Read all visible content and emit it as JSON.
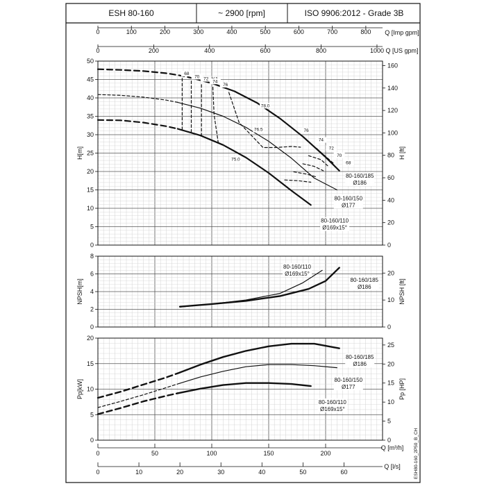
{
  "header": {
    "model": "ESH 80-160",
    "speed": "~ 2900 [rpm]",
    "standard": "ISO 9906:2012 - Grade 3B"
  },
  "chart_data": {
    "type": "line",
    "top_axes": [
      {
        "label": "Q [Imp gpm]",
        "range": [
          0,
          850
        ],
        "ticks": [
          0,
          100,
          200,
          300,
          400,
          500,
          600,
          700,
          800
        ]
      },
      {
        "label": "Q [US gpm]",
        "range": [
          0,
          1020
        ],
        "ticks": [
          0,
          200,
          400,
          600,
          800,
          1000
        ]
      }
    ],
    "bottom_axes": [
      {
        "label": "Q [m³/h]",
        "range": [
          0,
          250
        ],
        "ticks": [
          0,
          50,
          100,
          150,
          200
        ]
      },
      {
        "label": "Q [l/s]",
        "range": [
          0,
          69.4
        ],
        "ticks": [
          0,
          10,
          20,
          30,
          40,
          50,
          60
        ]
      }
    ],
    "panels": [
      {
        "name": "head",
        "ylabel": "H[m]",
        "ylim": [
          0,
          50
        ],
        "yticks": [
          0,
          5,
          10,
          15,
          20,
          25,
          30,
          35,
          40,
          45,
          50
        ],
        "y2label": "H [ft]",
        "y2lim": [
          0,
          164
        ],
        "y2ticks": [
          0,
          20,
          40,
          60,
          80,
          100,
          120,
          140,
          160
        ],
        "efficiency_title": "η[%]",
        "series": [
          {
            "name": "80-160/185",
            "sub": "Ø186",
            "width": 2.2,
            "dashed": [
              [
                0,
                47.8
              ],
              [
                20,
                47.6
              ],
              [
                40,
                47.3
              ],
              [
                60,
                46.7
              ],
              [
                70,
                46.2
              ],
              [
                80,
                45.6
              ]
            ],
            "solid": [
              [
                80,
                45.6
              ],
              [
                100,
                44
              ],
              [
                120,
                41.8
              ],
              [
                140,
                38.6
              ],
              [
                160,
                34.4
              ],
              [
                180,
                29.5
              ],
              [
                200,
                23.9
              ],
              [
                212,
                20.2
              ]
            ]
          },
          {
            "name": "80-160/150",
            "sub": "Ø177",
            "width": 1.2,
            "dashed": [
              [
                0,
                40.9
              ],
              [
                20,
                40.7
              ],
              [
                40,
                40.2
              ],
              [
                60,
                39.4
              ],
              [
                70,
                38.8
              ]
            ],
            "solid": [
              [
                70,
                38.8
              ],
              [
                90,
                37.2
              ],
              [
                110,
                35
              ],
              [
                130,
                32
              ],
              [
                150,
                28.2
              ],
              [
                170,
                23.6
              ],
              [
                190,
                18.2
              ],
              [
                210,
                15
              ]
            ]
          },
          {
            "name": "80-160/110",
            "sub": "Ø169x15°",
            "width": 2.2,
            "dashed": [
              [
                0,
                34
              ],
              [
                20,
                33.9
              ],
              [
                40,
                33.3
              ],
              [
                60,
                32.3
              ],
              [
                70,
                31.6
              ]
            ],
            "solid": [
              [
                70,
                31.6
              ],
              [
                90,
                29.8
              ],
              [
                110,
                27.2
              ],
              [
                130,
                23.8
              ],
              [
                150,
                19.6
              ],
              [
                170,
                14.8
              ],
              [
                187,
                10.9
              ]
            ]
          }
        ],
        "iso_efficiency": [
          {
            "label": "68",
            "pts": [
              [
                74,
                45.3
              ],
              [
                74,
                38.5
              ],
              [
                74,
                31.4
              ]
            ],
            "pts_right": [
              [
                192,
                26.3
              ],
              [
                200,
                24.1
              ],
              [
                207,
                22.2
              ]
            ]
          },
          {
            "label": "70",
            "pts": [
              [
                82,
                44.6
              ],
              [
                82,
                37.7
              ],
              [
                82,
                30.2
              ]
            ],
            "pts_right": [
              [
                185,
                24.3
              ],
              [
                196,
                23.2
              ],
              [
                203,
                21.2
              ]
            ]
          },
          {
            "label": "72",
            "pts": [
              [
                91,
                43.6
              ],
              [
                91,
                36.6
              ],
              [
                91,
                29.1
              ]
            ],
            "pts_right": [
              [
                180,
                22.1
              ],
              [
                190,
                21.4
              ],
              [
                198,
                20.2
              ]
            ]
          },
          {
            "label": "74",
            "pts": [
              [
                101,
                42.9
              ],
              [
                102,
                35.5
              ],
              [
                106,
                27.3
              ]
            ],
            "pts_right": [
              [
                172,
                19.9
              ],
              [
                183,
                19.3
              ],
              [
                192,
                18.5
              ]
            ]
          },
          {
            "label": "76",
            "pts": [
              [
                115,
                41.5
              ],
              [
                124,
                33.3
              ],
              [
                145,
                26.5
              ],
              [
                156,
                26.5
              ],
              [
                170,
                26.8
              ],
              [
                178,
                26.6
              ]
            ],
            "pts_right": [
              [
                164,
                17.7
              ],
              [
                176,
                17.5
              ],
              [
                187,
                17.1
              ]
            ]
          }
        ],
        "efficiency_labels": [
          {
            "text": "68",
            "q": 78,
            "h": 46.2
          },
          {
            "text": "70",
            "q": 87,
            "h": 45.4
          },
          {
            "text": "72",
            "q": 95,
            "h": 44.8
          },
          {
            "text": "74",
            "q": 103,
            "h": 44.1
          },
          {
            "text": "76",
            "q": 112,
            "h": 43.2
          },
          {
            "text": "78.0",
            "q": 147,
            "h": 37.5
          },
          {
            "text": "76.5",
            "q": 141,
            "h": 31
          },
          {
            "text": "75.0",
            "q": 121,
            "h": 22.9
          },
          {
            "text": "76",
            "q": 183,
            "h": 30.8
          },
          {
            "text": "74",
            "q": 196,
            "h": 28.2
          },
          {
            "text": "72",
            "q": 205,
            "h": 25.9
          },
          {
            "text": "70",
            "q": 212,
            "h": 24
          },
          {
            "text": "68",
            "q": 220,
            "h": 22
          }
        ],
        "curve_labels": [
          {
            "name": "80-160/185",
            "sub": "Ø186",
            "q": 230,
            "h": 18.3
          },
          {
            "name": "80-160/150",
            "sub": "Ø177",
            "q": 220,
            "h": 12.2
          },
          {
            "name": "80-160/110",
            "sub": "Ø169x15°",
            "q": 208,
            "h": 6.1
          }
        ]
      },
      {
        "name": "npsh",
        "ylabel": "NPSH[m]",
        "ylim": [
          0,
          8
        ],
        "yticks": [
          0,
          2,
          4,
          6,
          8
        ],
        "y2label": "NPSH [ft]",
        "y2lim": [
          0,
          26.25
        ],
        "y2ticks": [
          0,
          10,
          20
        ],
        "series": [
          {
            "name": "80-160/185",
            "sub": "Ø186",
            "width": 2.4,
            "solid": [
              [
                72,
                2.3
              ],
              [
                100,
                2.6
              ],
              [
                130,
                2.95
              ],
              [
                160,
                3.5
              ],
              [
                185,
                4.3
              ],
              [
                200,
                5.2
              ],
              [
                212,
                6.7
              ]
            ]
          },
          {
            "name": "80-160/110",
            "sub": "Ø169x15°",
            "width": 1.2,
            "solid": [
              [
                72,
                2.25
              ],
              [
                100,
                2.6
              ],
              [
                130,
                3.05
              ],
              [
                160,
                3.8
              ],
              [
                180,
                5
              ],
              [
                197,
                6.4
              ]
            ]
          }
        ],
        "curve_labels": [
          {
            "name": "80-160/110",
            "sub": "Ø169x15°",
            "q": 175,
            "h": 6.6
          },
          {
            "name": "80-160/185",
            "sub": "Ø186",
            "q": 234,
            "h": 5.1
          }
        ]
      },
      {
        "name": "power",
        "ylabel": "Pp[kW]",
        "ylim": [
          0,
          20
        ],
        "yticks": [
          0,
          5,
          10,
          15,
          20
        ],
        "y2label": "Pp [HP]",
        "y2lim": [
          0,
          26.8
        ],
        "y2ticks": [
          0,
          5,
          10,
          15,
          20,
          25
        ],
        "series": [
          {
            "name": "80-160/185",
            "sub": "Ø186",
            "width": 2.4,
            "dashed": [
              [
                0,
                8.3
              ],
              [
                20,
                9.5
              ],
              [
                40,
                10.9
              ],
              [
                60,
                12.3
              ],
              [
                70,
                13.1
              ]
            ],
            "solid": [
              [
                70,
                13.1
              ],
              [
                90,
                14.8
              ],
              [
                110,
                16.3
              ],
              [
                130,
                17.5
              ],
              [
                150,
                18.4
              ],
              [
                170,
                18.9
              ],
              [
                190,
                18.9
              ],
              [
                212,
                18
              ]
            ]
          },
          {
            "name": "80-160/150",
            "sub": "Ø177",
            "width": 1.2,
            "dashed": [
              [
                0,
                6.4
              ],
              [
                20,
                7.6
              ],
              [
                40,
                8.9
              ],
              [
                60,
                10.3
              ],
              [
                70,
                11
              ]
            ],
            "solid": [
              [
                70,
                11
              ],
              [
                90,
                12.4
              ],
              [
                110,
                13.5
              ],
              [
                130,
                14.4
              ],
              [
                150,
                14.8
              ],
              [
                170,
                14.8
              ],
              [
                190,
                14.6
              ],
              [
                210,
                14.2
              ]
            ]
          },
          {
            "name": "80-160/110",
            "sub": "Ø169x15°",
            "width": 2.4,
            "dashed": [
              [
                0,
                5.1
              ],
              [
                20,
                6.3
              ],
              [
                40,
                7.6
              ],
              [
                60,
                8.7
              ],
              [
                70,
                9.2
              ]
            ],
            "solid": [
              [
                70,
                9.2
              ],
              [
                90,
                10.1
              ],
              [
                110,
                10.8
              ],
              [
                130,
                11.2
              ],
              [
                150,
                11.2
              ],
              [
                170,
                11
              ],
              [
                187,
                10.6
              ]
            ]
          }
        ],
        "curve_labels": [
          {
            "name": "80-160/185",
            "sub": "Ø186",
            "q": 230,
            "h": 15.9
          },
          {
            "name": "80-160/150",
            "sub": "Ø177",
            "q": 220,
            "h": 11.4
          },
          {
            "name": "80-160/110",
            "sub": "Ø169x15°",
            "q": 206,
            "h": 7.1
          }
        ]
      }
    ]
  },
  "footer": {
    "code": "ESH80-160_2P50_B_CH"
  }
}
